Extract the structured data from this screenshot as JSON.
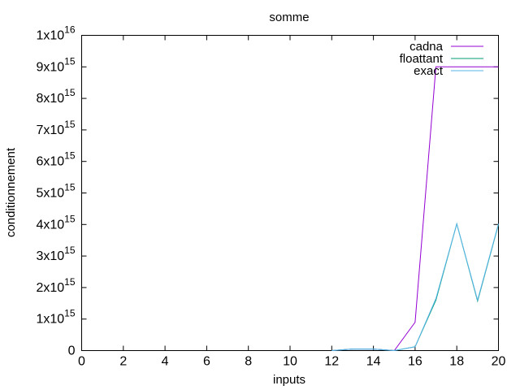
{
  "chart_data": {
    "type": "line",
    "title": "somme",
    "xlabel": "inputs",
    "ylabel": "conditionnement",
    "xlim": [
      0,
      20
    ],
    "ylim": [
      0,
      1e+16
    ],
    "x_ticks": [
      0,
      2,
      4,
      6,
      8,
      10,
      12,
      14,
      16,
      18,
      20
    ],
    "y_ticks": [
      {
        "value": 0,
        "mantissa": "0",
        "exponent": ""
      },
      {
        "value": 1000000000000000.0,
        "mantissa": "1x10",
        "exponent": "15"
      },
      {
        "value": 2000000000000000.0,
        "mantissa": "2x10",
        "exponent": "15"
      },
      {
        "value": 3000000000000000.0,
        "mantissa": "3x10",
        "exponent": "15"
      },
      {
        "value": 4000000000000000.0,
        "mantissa": "4x10",
        "exponent": "15"
      },
      {
        "value": 5000000000000000.0,
        "mantissa": "5x10",
        "exponent": "15"
      },
      {
        "value": 6000000000000000.0,
        "mantissa": "6x10",
        "exponent": "15"
      },
      {
        "value": 7000000000000000.0,
        "mantissa": "7x10",
        "exponent": "15"
      },
      {
        "value": 8000000000000000.0,
        "mantissa": "8x10",
        "exponent": "15"
      },
      {
        "value": 9000000000000000.0,
        "mantissa": "9x10",
        "exponent": "15"
      },
      {
        "value": 1e+16,
        "mantissa": "1x10",
        "exponent": "16"
      }
    ],
    "grid": false,
    "legend_position": "top-right",
    "series": [
      {
        "name": "cadna",
        "color": "#9400d3",
        "x": [
          12,
          13,
          14,
          15,
          16,
          17,
          18,
          19,
          20
        ],
        "y": [
          0,
          50000000000000.0,
          50000000000000.0,
          0,
          900000000000000.0,
          9000000000000000.0,
          9000000000000000.0,
          9000000000000000.0,
          9000000000000000.0
        ]
      },
      {
        "name": "floattant",
        "color": "#009e73",
        "x": [
          12,
          13,
          14,
          15,
          16,
          17,
          18,
          19,
          20
        ],
        "y": [
          0,
          50000000000000.0,
          50000000000000.0,
          0,
          120000000000000.0,
          1600000000000000.0,
          4020000000000000.0,
          1570000000000000.0,
          4000000000000000.0
        ]
      },
      {
        "name": "exact",
        "color": "#56b4e9",
        "x": [
          12,
          13,
          14,
          15,
          16,
          17,
          18,
          19,
          20
        ],
        "y": [
          0,
          50000000000000.0,
          50000000000000.0,
          0,
          120000000000000.0,
          1650000000000000.0,
          4020000000000000.0,
          1600000000000000.0,
          4020000000000000.0
        ]
      }
    ]
  }
}
